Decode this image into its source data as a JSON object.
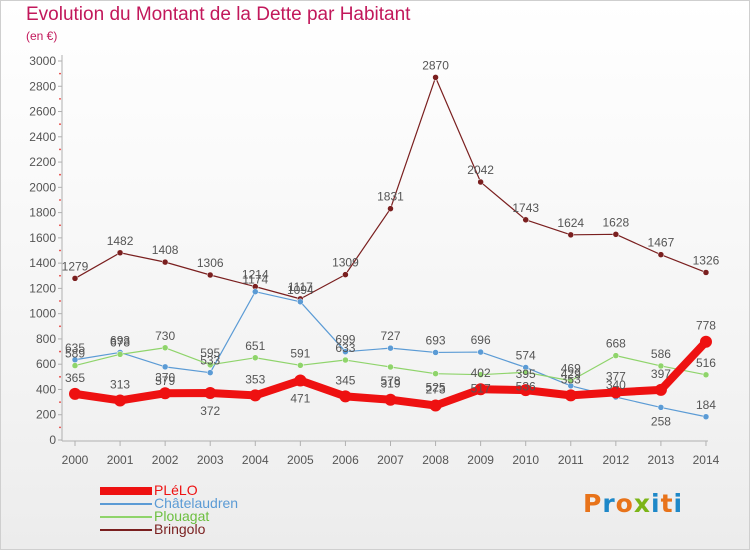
{
  "header": {
    "title": "Evolution du Montant de la Dette par Habitant",
    "subtitle": "(en €)"
  },
  "logo": {
    "text": "Proxiti",
    "colors": [
      "#e8731a",
      "#1e88c8",
      "#e8731a",
      "#7cb518",
      "#1e88c8",
      "#e8731a",
      "#1e88c8"
    ]
  },
  "chart_data": {
    "type": "line",
    "title": "Evolution du Montant de la Dette par Habitant",
    "subtitle": "(en €)",
    "xlabel": "",
    "ylabel": "",
    "categories": [
      "2000",
      "2001",
      "2002",
      "2003",
      "2004",
      "2005",
      "2006",
      "2007",
      "2008",
      "2009",
      "2010",
      "2011",
      "2012",
      "2013",
      "2014"
    ],
    "ylim": [
      0,
      3000
    ],
    "yticks": [
      0,
      200,
      400,
      600,
      800,
      1000,
      1200,
      1400,
      1600,
      1800,
      2000,
      2200,
      2400,
      2600,
      2800,
      3000
    ],
    "grid": false,
    "legend_position": "bottom-left",
    "series": [
      {
        "name": "Bringolo",
        "color": "#7a1f1f",
        "width": 1.2,
        "marker": 3,
        "values": [
          1279,
          1482,
          1408,
          1306,
          1214,
          1117,
          1309,
          1831,
          2870,
          2042,
          1743,
          1624,
          1628,
          1467,
          1326
        ],
        "label_positions": [
          "top",
          "top",
          "top",
          "top",
          "top",
          "top",
          "top",
          "top",
          "top",
          "top",
          "top",
          "top",
          "top",
          "top",
          "top"
        ]
      },
      {
        "name": "Châtelaudren",
        "color": "#5b9bd5",
        "width": 1.2,
        "marker": 3,
        "values": [
          635,
          693,
          579,
          533,
          1174,
          1094,
          699,
          727,
          693,
          696,
          574,
          429,
          340,
          258,
          184
        ],
        "label_positions": [
          "top",
          "top",
          "bottom",
          "top",
          "top",
          "top",
          "top",
          "top",
          "top",
          "top",
          "top",
          "top",
          "top",
          "bottom",
          "top"
        ]
      },
      {
        "name": "Plouagat",
        "color": "#8fd46b",
        "width": 1.2,
        "marker": 3,
        "values": [
          589,
          678,
          730,
          595,
          651,
          591,
          633,
          578,
          525,
          517,
          536,
          469,
          668,
          586,
          516
        ],
        "label_positions": [
          "top",
          "top",
          "top",
          "top",
          "top",
          "top",
          "top",
          "bottom",
          "bottom",
          "bottom",
          "bottom",
          "top",
          "top",
          "top",
          "top"
        ]
      },
      {
        "name": "PLéLO",
        "color": "#ee1111",
        "width": 8,
        "marker": 6,
        "values": [
          365,
          313,
          370,
          372,
          353,
          471,
          345,
          319,
          273,
          402,
          395,
          353,
          377,
          397,
          778
        ],
        "label_positions": [
          "top",
          "top",
          "top",
          "bottom",
          "top",
          "bottom",
          "top",
          "top",
          "top",
          "top",
          "top",
          "top",
          "top",
          "top",
          "top"
        ]
      }
    ]
  },
  "legend": [
    {
      "name": "PLéLO",
      "color": "#ee1111",
      "width": 8
    },
    {
      "name": "Châtelaudren",
      "color": "#5b9bd5",
      "width": 2
    },
    {
      "name": "Plouagat",
      "color": "#8fd46b",
      "width": 2
    },
    {
      "name": "Bringolo",
      "color": "#7a1f1f",
      "width": 2
    }
  ]
}
